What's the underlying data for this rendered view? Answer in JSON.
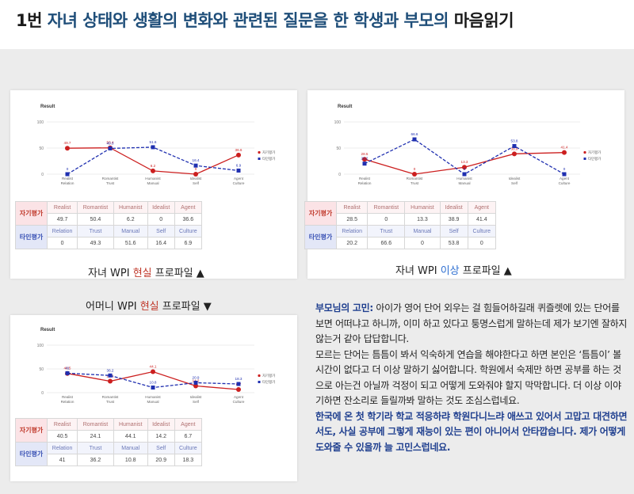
{
  "title": {
    "part1": "1번 ",
    "part2": "자녀 상태와 생활의 변화와 관련된 질문을 한 학생과 부모의",
    "part3": " 마음읽기"
  },
  "chart_data": [
    {
      "type": "line",
      "title": "Result",
      "ylim": [
        0,
        100
      ],
      "yticks": [
        "100",
        "50",
        "0"
      ],
      "categories": [
        "Realist\nRelation",
        "Romantist\nTrust",
        "Humanist\nManual",
        "Idealist\nSelf",
        "Agent\nCulture"
      ],
      "series": [
        {
          "name": "자기평가",
          "color": "#cc1f1f",
          "values": [
            49.7,
            50.4,
            6.2,
            0,
            36.6
          ]
        },
        {
          "name": "타인평가",
          "color": "#1f2fb0",
          "values": [
            0,
            49.3,
            51.6,
            16.4,
            6.9
          ]
        }
      ],
      "table": {
        "rows": [
          {
            "label": "자기평가",
            "cells": [
              "Realist",
              "Romantist",
              "Humanist",
              "Idealist",
              "Agent"
            ]
          },
          {
            "label": "",
            "cells": [
              "49.7",
              "50.4",
              "6.2",
              "0",
              "36.6"
            ]
          },
          {
            "label": "타인평가",
            "cells": [
              "Relation",
              "Trust",
              "Manual",
              "Self",
              "Culture"
            ]
          },
          {
            "label": "",
            "cells": [
              "0",
              "49.3",
              "51.6",
              "16.4",
              "6.9"
            ]
          }
        ]
      },
      "caption": {
        "pre": "자녀 WPI ",
        "mid": "현실",
        "post": " 프로파일 ▲"
      }
    },
    {
      "type": "line",
      "title": "Result",
      "ylim": [
        0,
        100
      ],
      "yticks": [
        "100",
        "50",
        "0"
      ],
      "categories": [
        "Realist\nRelation",
        "Romantist\nTrust",
        "Humanist\nManual",
        "Idealist\nSelf",
        "Agent\nCulture"
      ],
      "series": [
        {
          "name": "자기평가",
          "color": "#cc1f1f",
          "values": [
            28.5,
            0,
            13.3,
            38.9,
            41.4
          ]
        },
        {
          "name": "타인평가",
          "color": "#1f2fb0",
          "values": [
            20.2,
            66.6,
            0,
            53.8,
            0
          ]
        }
      ],
      "table": {
        "rows": [
          {
            "label": "자기평가",
            "cells": [
              "Realist",
              "Romantist",
              "Humanist",
              "Idealist",
              "Agent"
            ]
          },
          {
            "label": "",
            "cells": [
              "28.5",
              "0",
              "13.3",
              "38.9",
              "41.4"
            ]
          },
          {
            "label": "타인평가",
            "cells": [
              "Relation",
              "Trust",
              "Manual",
              "Self",
              "Culture"
            ]
          },
          {
            "label": "",
            "cells": [
              "20.2",
              "66.6",
              "0",
              "53.8",
              "0"
            ]
          }
        ]
      },
      "caption": {
        "pre": "자녀 WPI ",
        "mid": "이상",
        "post": " 프로파일 ▲"
      }
    },
    {
      "type": "line",
      "title": "Result",
      "ylim": [
        0,
        100
      ],
      "yticks": [
        "100",
        "50",
        "0"
      ],
      "categories": [
        "Realist\nRelation",
        "Romantist\nTrust",
        "Humanist\nManual",
        "Idealist\nSelf",
        "Agent\nCulture"
      ],
      "series": [
        {
          "name": "자기평가",
          "color": "#cc1f1f",
          "values": [
            40.5,
            24.1,
            44.1,
            14.2,
            6.7
          ]
        },
        {
          "name": "타인평가",
          "color": "#1f2fb0",
          "values": [
            41,
            36.2,
            10.8,
            20.9,
            18.3
          ]
        }
      ],
      "table": {
        "rows": [
          {
            "label": "자기평가",
            "cells": [
              "Realist",
              "Romantist",
              "Humanist",
              "Idealist",
              "Agent"
            ]
          },
          {
            "label": "",
            "cells": [
              "40.5",
              "24.1",
              "44.1",
              "14.2",
              "6.7"
            ]
          },
          {
            "label": "타인평가",
            "cells": [
              "Relation",
              "Trust",
              "Manual",
              "Self",
              "Culture"
            ]
          },
          {
            "label": "",
            "cells": [
              "41",
              "36.2",
              "10.8",
              "20.9",
              "18.3"
            ]
          }
        ]
      },
      "caption": {
        "pre": "어머니 WPI ",
        "mid": "현실",
        "post": " 프로파일 ▼"
      }
    }
  ],
  "concern": {
    "lead": "부모님의 고민:",
    "p1": " 아이가 영어 단어 외우는 걸 힘들어하길래 퀴즐렛에 있는 단어를 보면 어떠냐고 하니까, 이미 하고 있다고 퉁명스럽게 말하는데 제가 보기엔 잘하지 않는거 같아 답답합니다.",
    "p2": "모르는 단어는 틈틈이 봐서 익숙하게 연습을 해야한다고 하면 본인은 ‘틈틈이’ 볼 시간이 없다고 더 이상 말하기 싫어합니다. 학원에서 숙제만 하면 공부를 하는 것으로 아는건 아닐까 걱정이 되고 어떻게 도와줘야 할지 막막합니다. 더 이상 이야기하면 잔소리로 들릴까봐 말하는 것도 조심스럽네요.",
    "p3": "한국에 온 첫 학기라 학교 적응하랴 학원다니느랴 애쓰고 있어서 고맙고 대견하면서도, 사실 공부에 그렇게 재능이 있는 편이 아니어서 안타깝습니다. 제가 어떻게 도와줄 수 있을까 늘 고민스럽네요."
  }
}
